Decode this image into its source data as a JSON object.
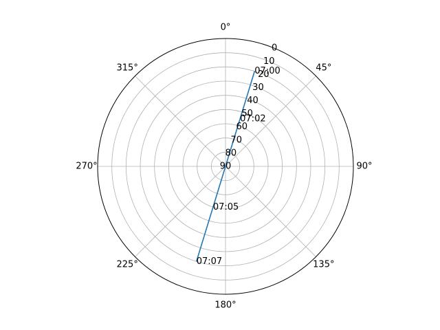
{
  "chart_data": {
    "type": "polar-line",
    "theta_zero": "top",
    "theta_direction": "clockwise",
    "r_direction": "inverted",
    "rlim": [
      90,
      0
    ],
    "r_ticks": [
      "0",
      "10",
      "20",
      "30",
      "40",
      "50",
      "60",
      "70",
      "80",
      "90"
    ],
    "r_tick_values": [
      0,
      10,
      20,
      30,
      40,
      50,
      60,
      70,
      80,
      90
    ],
    "theta_ticks": [
      "0°",
      "45°",
      "90°",
      "135°",
      "180°",
      "225°",
      "270°",
      "315°"
    ],
    "theta_tick_values": [
      0,
      45,
      90,
      135,
      180,
      225,
      270,
      315
    ],
    "grid": true,
    "series": [
      {
        "color": "#1f77b4",
        "points": [
          {
            "azimuth": 17,
            "elevation": 20
          },
          {
            "azimuth": 17,
            "elevation": 90
          },
          {
            "azimuth": 197,
            "elevation": 45
          },
          {
            "azimuth": 197,
            "elevation": 20
          }
        ]
      }
    ],
    "annotations": [
      {
        "text": "07:00",
        "azimuth": 17,
        "elevation": 20
      },
      {
        "text": "07:02",
        "azimuth": 17,
        "elevation": 55
      },
      {
        "text": "07:05",
        "azimuth": 197,
        "elevation": 60
      },
      {
        "text": "07:07",
        "azimuth": 197,
        "elevation": 20
      }
    ]
  }
}
